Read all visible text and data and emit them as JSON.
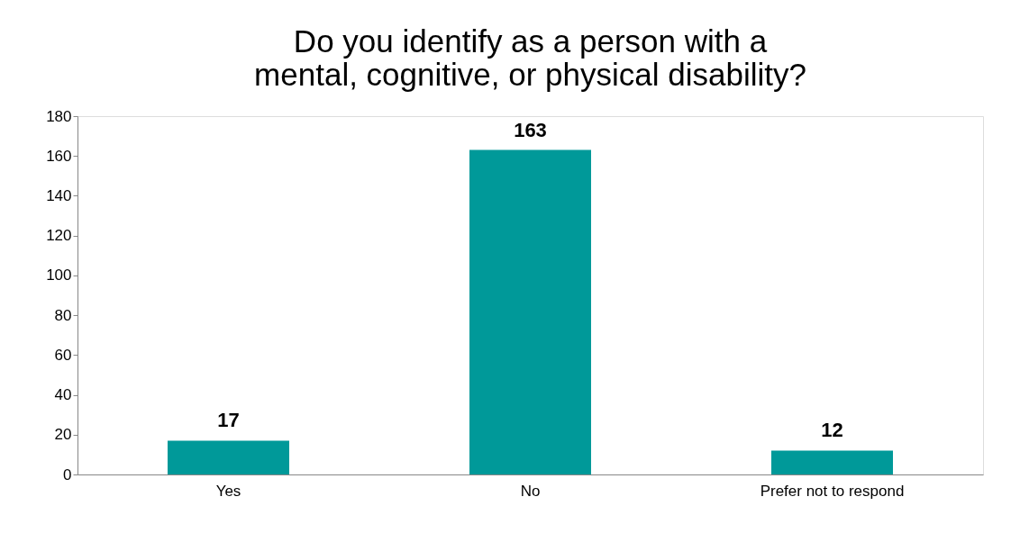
{
  "chart_data": {
    "type": "bar",
    "title": "Do you identify as a person with a mental, cognitive, or physical disability?",
    "categories": [
      "Yes",
      "No",
      "Prefer not to respond"
    ],
    "values": [
      17,
      163,
      12
    ],
    "color": "#009999",
    "ylim": [
      0,
      180
    ],
    "yticks": [
      0,
      20,
      40,
      60,
      80,
      100,
      120,
      140,
      160,
      180
    ],
    "data_labels": true,
    "grid": false
  }
}
